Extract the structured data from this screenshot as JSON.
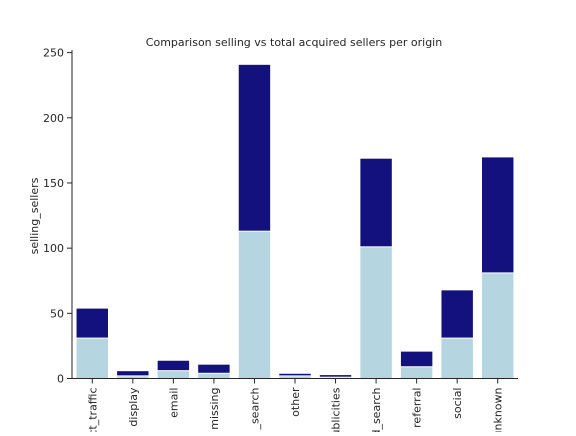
{
  "chart_data": {
    "type": "bar",
    "title": "Comparison selling vs total acquired sellers per origin",
    "xlabel": "",
    "ylabel": "selling_sellers",
    "ylim": [
      0,
      252
    ],
    "yticks": [
      0,
      50,
      100,
      150,
      200,
      250
    ],
    "categories": [
      "ct_traffic",
      "display",
      "email",
      "missing",
      "_search",
      "other",
      "ublicities",
      "d_search",
      "referral",
      "social",
      "unknown"
    ],
    "series": [
      {
        "role": "total",
        "color": "#13117d",
        "values": [
          54,
          6,
          14,
          11,
          241,
          4,
          3,
          169,
          21,
          68,
          170
        ]
      },
      {
        "role": "selling",
        "color": "#b5d6e0",
        "values": [
          31,
          2,
          6,
          4,
          113,
          2,
          1,
          101,
          9,
          31,
          81
        ]
      }
    ],
    "grid": false,
    "legend": "none",
    "stacking": "overlay"
  }
}
